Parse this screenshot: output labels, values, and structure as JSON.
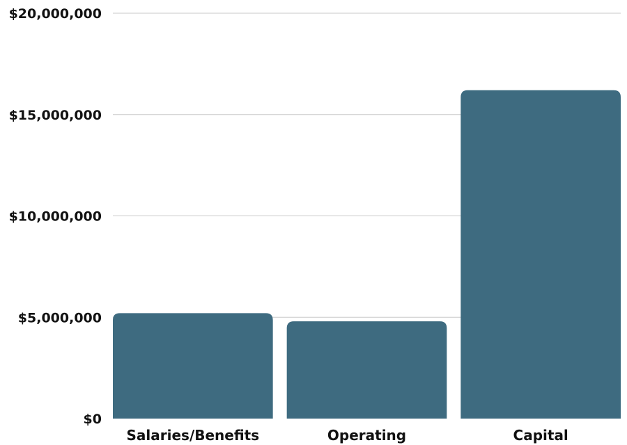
{
  "chart_data": {
    "type": "bar",
    "title": "",
    "xlabel": "",
    "ylabel": "",
    "categories": [
      "Salaries/Benefits",
      "Operating",
      "Capital"
    ],
    "values": [
      5200000,
      4800000,
      16200000
    ],
    "ylim": [
      0,
      20000000
    ],
    "yticks": [
      0,
      5000000,
      10000000,
      15000000,
      20000000
    ],
    "ytick_labels": [
      "$0",
      "$5,000,000",
      "$10,000,000",
      "$15,000,000",
      "$20,000,000"
    ],
    "grid": true,
    "legend": "none",
    "bar_color": "#3e6b80",
    "grid_color": "#c8c8c8"
  }
}
